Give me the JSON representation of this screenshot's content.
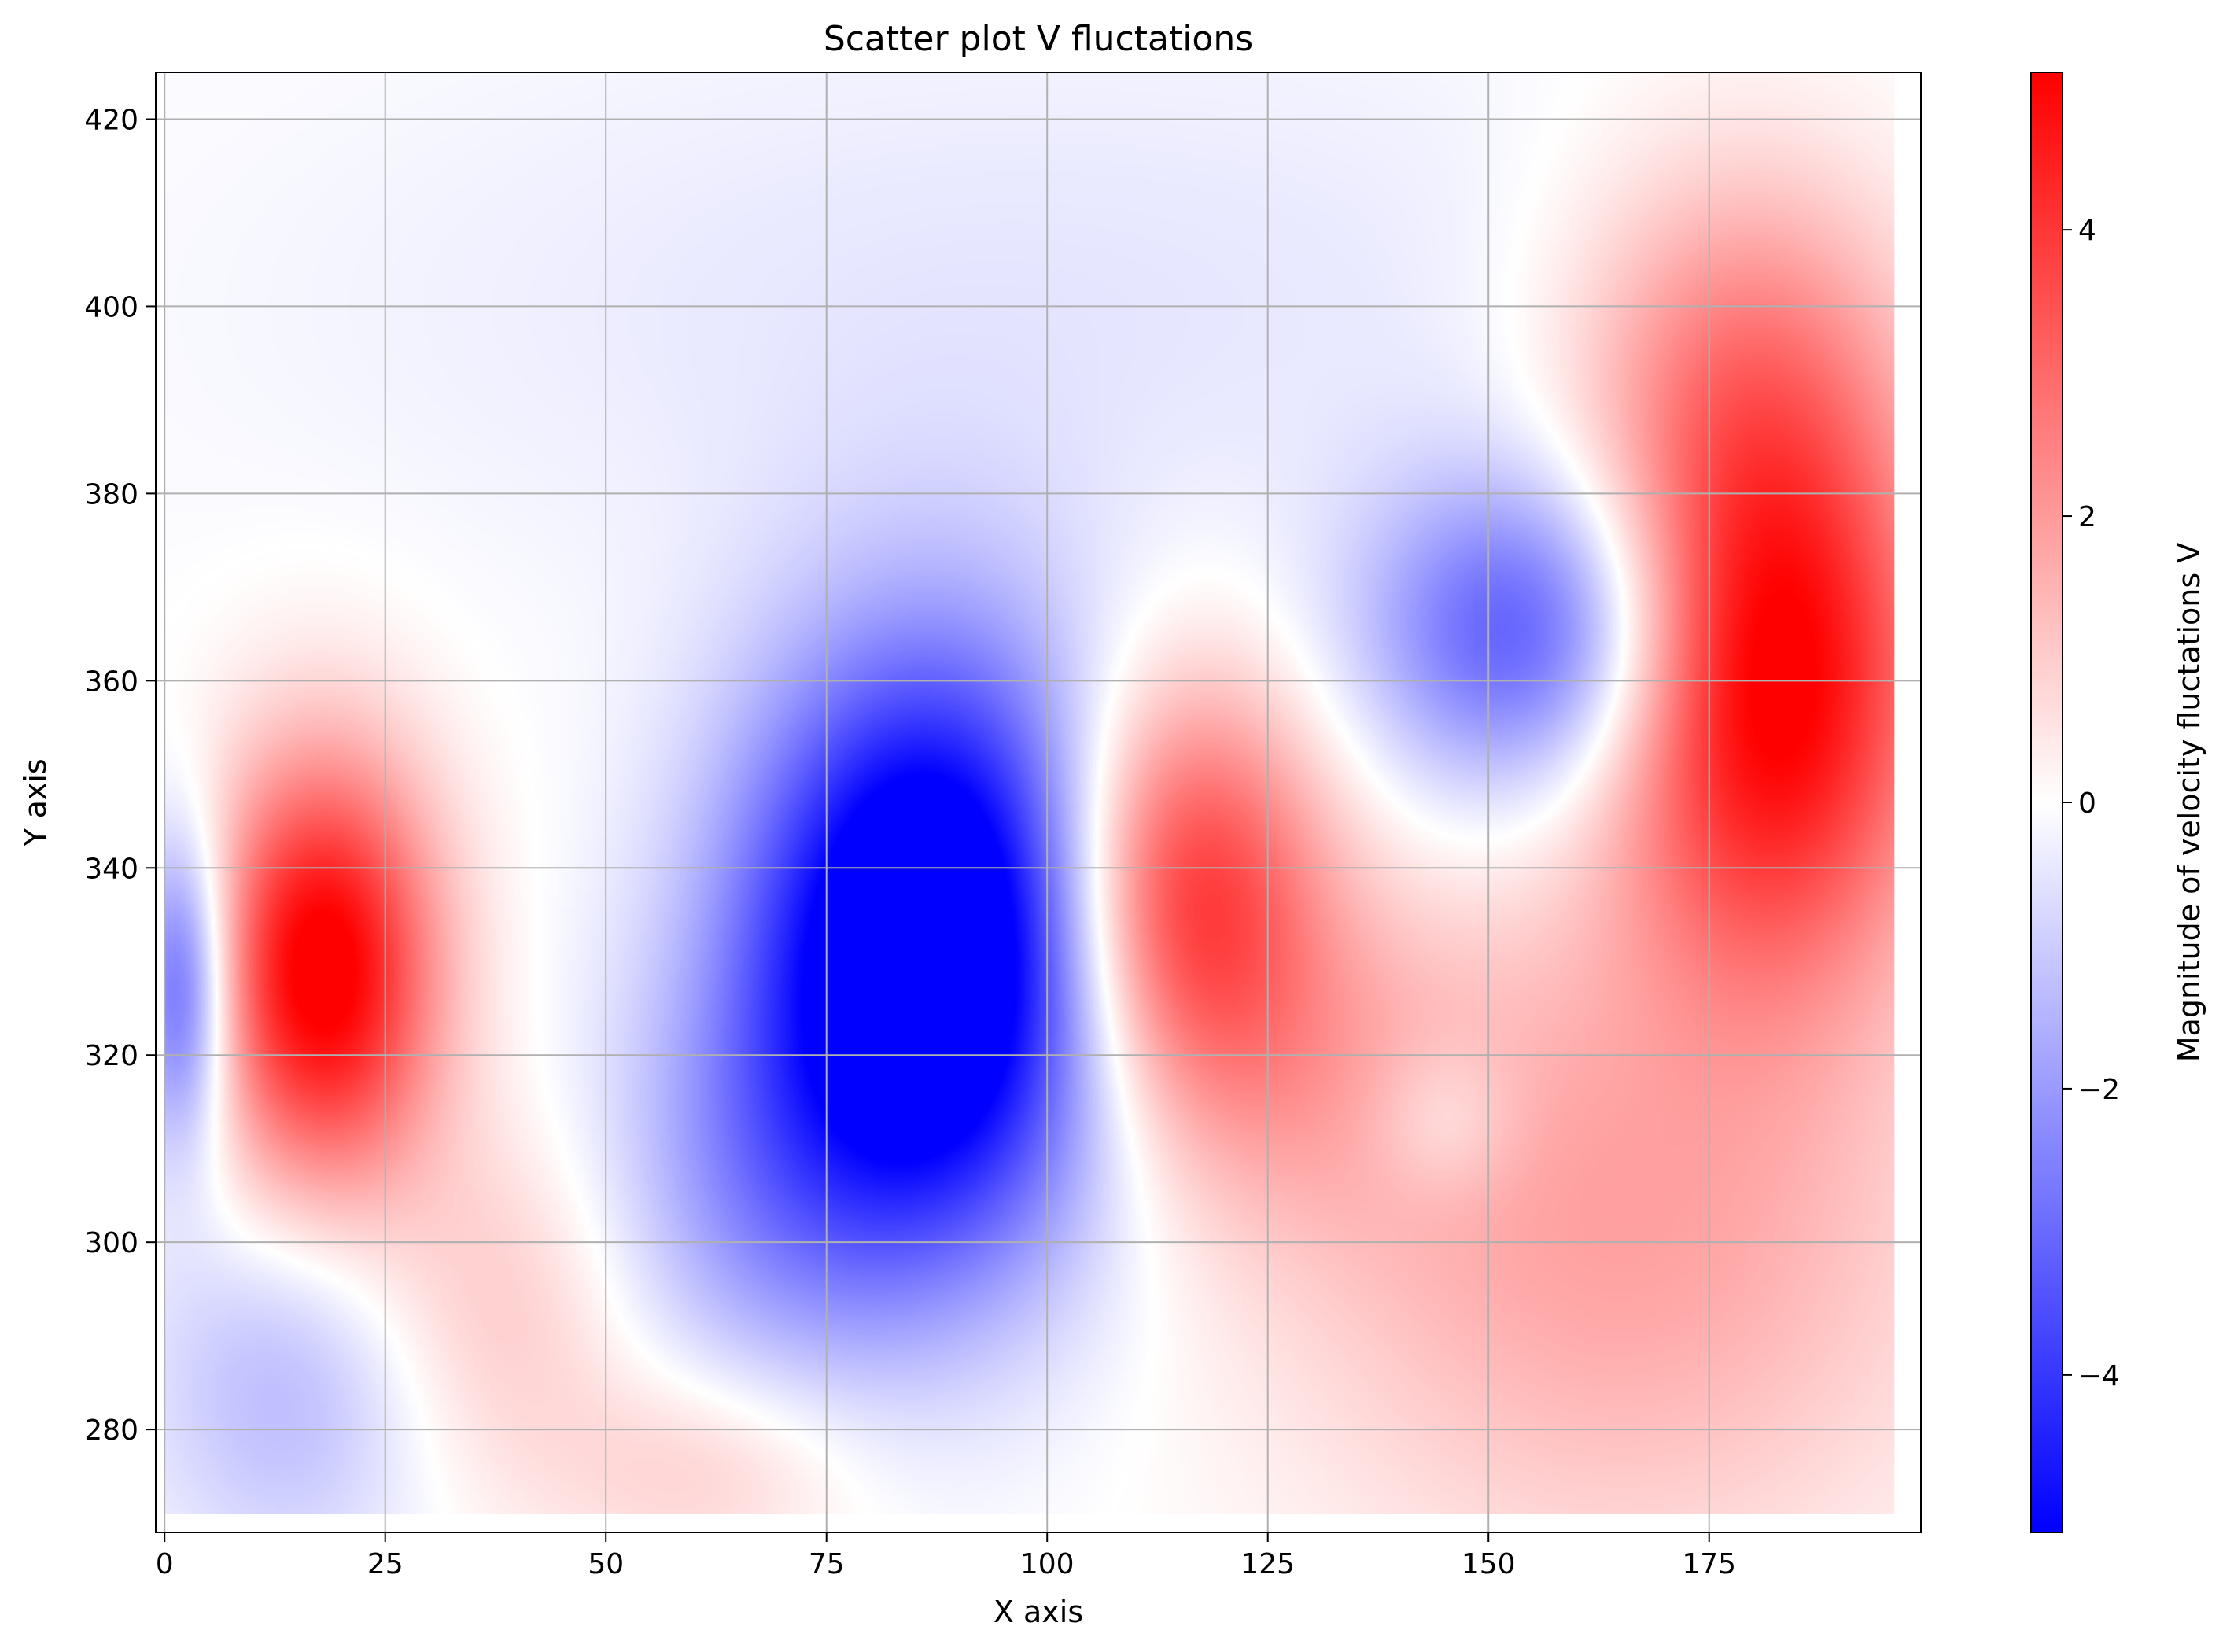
{
  "chart_data": {
    "type": "heatmap",
    "title": "Scatter plot V fluctations",
    "xlabel": "X axis",
    "ylabel": "Y axis",
    "xlim": [
      -1,
      199
    ],
    "ylim": [
      269,
      425
    ],
    "x_ticks": [
      0,
      25,
      50,
      75,
      100,
      125,
      150,
      175
    ],
    "y_ticks": [
      280,
      300,
      320,
      340,
      360,
      380,
      400,
      420
    ],
    "grid": true,
    "data_extent": {
      "x": [
        0,
        196
      ],
      "y": [
        271,
        425
      ]
    },
    "colorbar": {
      "label": "Magnitude of velocity fluctations V",
      "range": [
        -5.1,
        5.1
      ],
      "ticks": [
        -4,
        -2,
        0,
        2,
        4
      ],
      "tick_labels": [
        "−4",
        "−2",
        "0",
        "2",
        "4"
      ],
      "colormap": "bwr",
      "colors": {
        "low": "#0000ff",
        "mid": "#ffffff",
        "high": "#ff0000"
      }
    },
    "field_features": [
      {
        "x": 2,
        "y": 327,
        "value": -3.5,
        "sx": 4,
        "sy": 12
      },
      {
        "x": 18,
        "y": 329,
        "value": 5.5,
        "sx": 9,
        "sy": 16
      },
      {
        "x": 37,
        "y": 293,
        "value": 1.2,
        "sx": 12,
        "sy": 14
      },
      {
        "x": 62,
        "y": 276,
        "value": 1.0,
        "sx": 12,
        "sy": 8
      },
      {
        "x": 87,
        "y": 331,
        "value": -7.5,
        "sx": 15,
        "sy": 22
      },
      {
        "x": 68,
        "y": 305,
        "value": -1.5,
        "sx": 14,
        "sy": 16
      },
      {
        "x": 115,
        "y": 337,
        "value": 4.5,
        "sx": 11,
        "sy": 16
      },
      {
        "x": 155,
        "y": 365,
        "value": -3.5,
        "sx": 13,
        "sy": 12
      },
      {
        "x": 182,
        "y": 360,
        "value": 5.5,
        "sx": 13,
        "sy": 22
      },
      {
        "x": 178,
        "y": 395,
        "value": 1.8,
        "sx": 14,
        "sy": 16
      },
      {
        "x": 165,
        "y": 300,
        "value": 1.8,
        "sx": 26,
        "sy": 24
      },
      {
        "x": 130,
        "y": 318,
        "value": 1.0,
        "sx": 16,
        "sy": 14
      },
      {
        "x": 15,
        "y": 285,
        "value": -1.5,
        "sx": 12,
        "sy": 14
      },
      {
        "x": 100,
        "y": 400,
        "value": -0.5,
        "sx": 60,
        "sy": 22
      },
      {
        "x": 145,
        "y": 313,
        "value": -1.0,
        "sx": 6,
        "sy": 6
      }
    ]
  }
}
